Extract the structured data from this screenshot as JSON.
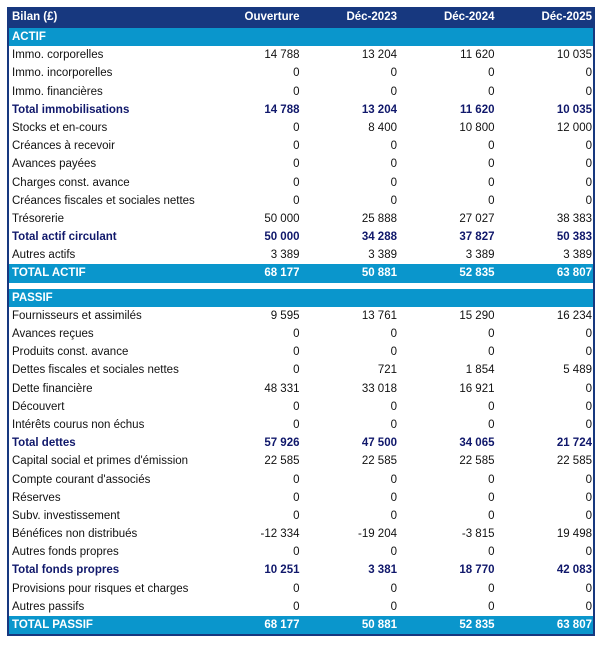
{
  "header": {
    "title": "Bilan (£)",
    "columns": [
      "Ouverture",
      "Déc-2023",
      "Déc-2024",
      "Déc-2025"
    ]
  },
  "colors": {
    "header": "#17387f",
    "section": "#0a96cc",
    "total_text": "#10186b"
  },
  "sections": [
    {
      "title": "ACTIF",
      "rows": [
        {
          "label": "Immo. corporelles",
          "type": "normal",
          "values": [
            "14 788",
            "13 204",
            "11 620",
            "10 035"
          ]
        },
        {
          "label": "Immo. incorporelles",
          "type": "normal",
          "values": [
            "0",
            "0",
            "0",
            "0"
          ]
        },
        {
          "label": "Immo. financières",
          "type": "normal",
          "values": [
            "0",
            "0",
            "0",
            "0"
          ]
        },
        {
          "label": "Total immobilisations",
          "type": "total",
          "values": [
            "14 788",
            "13 204",
            "11 620",
            "10 035"
          ]
        },
        {
          "label": "Stocks et en-cours",
          "type": "normal",
          "values": [
            "0",
            "8 400",
            "10 800",
            "12 000"
          ]
        },
        {
          "label": "Créances à recevoir",
          "type": "normal",
          "values": [
            "0",
            "0",
            "0",
            "0"
          ]
        },
        {
          "label": "Avances payées",
          "type": "normal",
          "values": [
            "0",
            "0",
            "0",
            "0"
          ]
        },
        {
          "label": "Charges const. avance",
          "type": "normal",
          "values": [
            "0",
            "0",
            "0",
            "0"
          ]
        },
        {
          "label": "Créances fiscales et sociales nettes",
          "type": "normal",
          "values": [
            "0",
            "0",
            "0",
            "0"
          ]
        },
        {
          "label": "Trésorerie",
          "type": "normal",
          "values": [
            "50 000",
            "25 888",
            "27 027",
            "38 383"
          ]
        },
        {
          "label": "Total actif circulant",
          "type": "total",
          "values": [
            "50 000",
            "34 288",
            "37 827",
            "50 383"
          ]
        },
        {
          "label": "Autres actifs",
          "type": "normal",
          "values": [
            "3 389",
            "3 389",
            "3 389",
            "3 389"
          ]
        },
        {
          "label": "TOTAL ACTIF",
          "type": "grand",
          "values": [
            "68 177",
            "50 881",
            "52 835",
            "63 807"
          ]
        }
      ]
    },
    {
      "title": "PASSIF",
      "rows": [
        {
          "label": "Fournisseurs et assimilés",
          "type": "normal",
          "values": [
            "9 595",
            "13 761",
            "15 290",
            "16 234"
          ]
        },
        {
          "label": "Avances reçues",
          "type": "normal",
          "values": [
            "0",
            "0",
            "0",
            "0"
          ]
        },
        {
          "label": "Produits const. avance",
          "type": "normal",
          "values": [
            "0",
            "0",
            "0",
            "0"
          ]
        },
        {
          "label": "Dettes fiscales et sociales nettes",
          "type": "normal",
          "values": [
            "0",
            "721",
            "1 854",
            "5 489"
          ]
        },
        {
          "label": "Dette financière",
          "type": "normal",
          "values": [
            "48 331",
            "33 018",
            "16 921",
            "0"
          ]
        },
        {
          "label": "Découvert",
          "type": "normal",
          "values": [
            "0",
            "0",
            "0",
            "0"
          ]
        },
        {
          "label": "Intérêts courus non échus",
          "type": "normal",
          "values": [
            "0",
            "0",
            "0",
            "0"
          ]
        },
        {
          "label": "Total dettes",
          "type": "total",
          "values": [
            "57 926",
            "47 500",
            "34 065",
            "21 724"
          ]
        },
        {
          "label": "Capital social et primes d'émission",
          "type": "normal",
          "values": [
            "22 585",
            "22 585",
            "22 585",
            "22 585"
          ]
        },
        {
          "label": "Compte courant d'associés",
          "type": "normal",
          "values": [
            "0",
            "0",
            "0",
            "0"
          ]
        },
        {
          "label": "Réserves",
          "type": "normal",
          "values": [
            "0",
            "0",
            "0",
            "0"
          ]
        },
        {
          "label": "Subv. investissement",
          "type": "normal",
          "values": [
            "0",
            "0",
            "0",
            "0"
          ]
        },
        {
          "label": "Bénéfices non distribués",
          "type": "normal",
          "values": [
            "-12 334",
            "-19 204",
            "-3 815",
            "19 498"
          ]
        },
        {
          "label": "Autres fonds propres",
          "type": "normal",
          "values": [
            "0",
            "0",
            "0",
            "0"
          ]
        },
        {
          "label": "Total fonds propres",
          "type": "total",
          "values": [
            "10 251",
            "3 381",
            "18 770",
            "42 083"
          ]
        },
        {
          "label": "Provisions pour risques et charges",
          "type": "normal",
          "values": [
            "0",
            "0",
            "0",
            "0"
          ]
        },
        {
          "label": "Autres passifs",
          "type": "normal",
          "values": [
            "0",
            "0",
            "0",
            "0"
          ]
        },
        {
          "label": "TOTAL PASSIF",
          "type": "grand",
          "values": [
            "68 177",
            "50 881",
            "52 835",
            "63 807"
          ]
        }
      ]
    }
  ]
}
